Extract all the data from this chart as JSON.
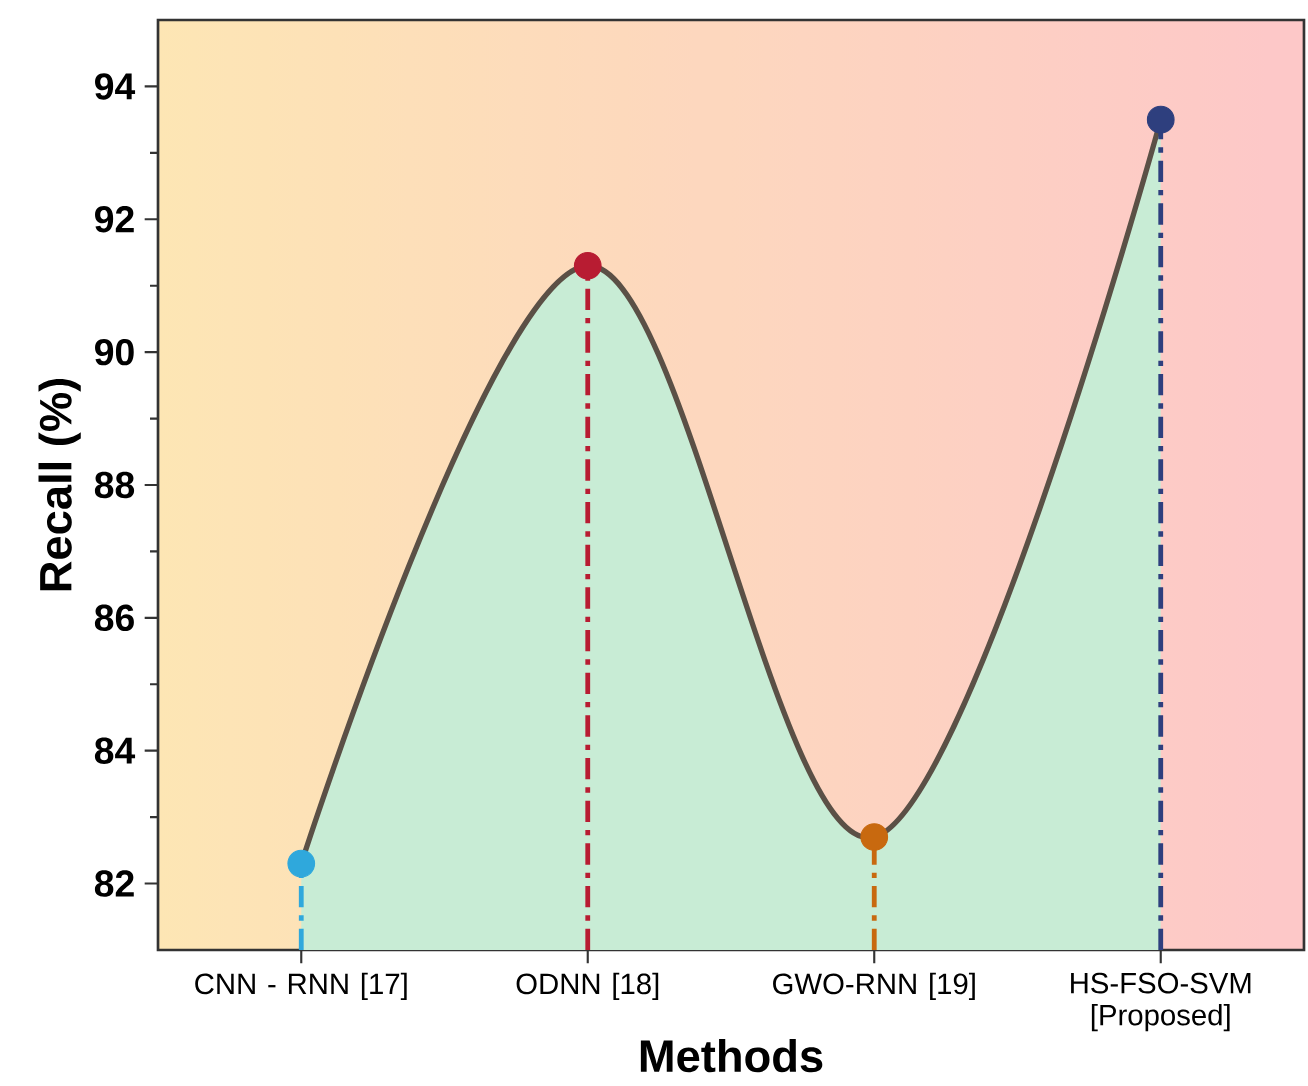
{
  "chart_data": {
    "type": "area",
    "xlabel": "Methods",
    "ylabel": "Recall (%)",
    "categories": [
      "CNN - RNN [17]",
      "ODNN [18]",
      "GWO-RNN [19]",
      "HS-FSO-SVM [Proposed]"
    ],
    "series": [
      {
        "color": "#5b5046",
        "values": [
          82.3,
          91.3,
          82.7,
          93.5
        ]
      },
      {
        "type": "lollipop",
        "marker": "circle",
        "colors": [
          "#2fa8dc",
          "#b81c32",
          "#c8690f",
          "#2e3f7e"
        ],
        "values": [
          82.3,
          91.3,
          82.7,
          93.5
        ]
      }
    ],
    "ylim": [
      81,
      95
    ],
    "yticks": [
      82,
      84,
      86,
      88,
      90,
      92,
      94
    ],
    "line_style": "solid",
    "grid": false
  }
}
